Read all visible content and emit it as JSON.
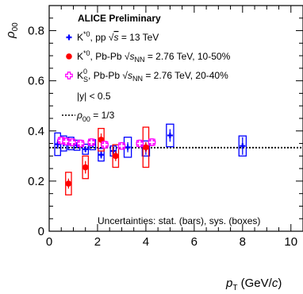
{
  "chart_data": {
    "type": "scatter",
    "title": "ALICE Preliminary",
    "xlabel_main": "p",
    "xlabel_sub": "T",
    "xlabel_unit_pre": " (GeV/",
    "xlabel_unit_c": "c",
    "xlabel_unit_post": ")",
    "ylabel_main": "ρ",
    "ylabel_sub": "00",
    "xlim": [
      0,
      10.5
    ],
    "ylim": [
      0,
      0.9
    ],
    "xticks": [
      0,
      2,
      4,
      6,
      8,
      10
    ],
    "yticks": [
      0,
      0.2,
      0.4,
      0.6,
      0.8
    ],
    "xtick_labels": [
      "0",
      "2",
      "4",
      "6",
      "8",
      "10"
    ],
    "ytick_labels": [
      "0",
      "0.2",
      "0.4",
      "0.6",
      "0.8"
    ],
    "legend_position": "top-left",
    "reference_line": {
      "y": 0.3333,
      "label": " = 1/3"
    },
    "legend_extra": "|y| < 0.5",
    "footnote": "Uncertainties: stat. (bars), sys. (boxes)",
    "series": [
      {
        "name": "K*0, pp √s = 13 TeV",
        "legend_parts": [
          "K",
          "*0",
          ", pp ",
          "√",
          "s",
          " = 13 TeV"
        ],
        "color": "#0000ff",
        "marker": "cross",
        "points": [
          {
            "x": 0.35,
            "y": 0.347,
            "stat": 0.018,
            "sys": 0.045,
            "xw": 0.12
          },
          {
            "x": 0.6,
            "y": 0.35,
            "stat": 0.012,
            "sys": 0.03,
            "xw": 0.12
          },
          {
            "x": 0.9,
            "y": 0.35,
            "stat": 0.012,
            "sys": 0.025,
            "xw": 0.12
          },
          {
            "x": 1.15,
            "y": 0.343,
            "stat": 0.012,
            "sys": 0.02,
            "xw": 0.12
          },
          {
            "x": 1.5,
            "y": 0.327,
            "stat": 0.012,
            "sys": 0.02,
            "xw": 0.12
          },
          {
            "x": 1.8,
            "y": 0.345,
            "stat": 0.012,
            "sys": 0.02,
            "xw": 0.12
          },
          {
            "x": 2.15,
            "y": 0.305,
            "stat": 0.015,
            "sys": 0.025,
            "xw": 0.12
          },
          {
            "x": 2.65,
            "y": 0.32,
            "stat": 0.015,
            "sys": 0.02,
            "xw": 0.12
          },
          {
            "x": 3.25,
            "y": 0.335,
            "stat": 0.02,
            "sys": 0.04,
            "xw": 0.15
          },
          {
            "x": 4.0,
            "y": 0.33,
            "stat": 0.025,
            "sys": 0.03,
            "xw": 0.15
          },
          {
            "x": 5.0,
            "y": 0.382,
            "stat": 0.025,
            "sys": 0.045,
            "xw": 0.15
          },
          {
            "x": 8.0,
            "y": 0.34,
            "stat": 0.035,
            "sys": 0.04,
            "xw": 0.15
          }
        ]
      },
      {
        "name": "K*0, Pb-Pb √sNN = 2.76 TeV, 10-50%",
        "legend_parts": [
          "K",
          "*0",
          ", Pb-Pb ",
          "√",
          "s",
          "NN",
          " = 2.76 TeV, 10-50%"
        ],
        "color": "#ff0000",
        "marker": "circle",
        "points": [
          {
            "x": 0.8,
            "y": 0.19,
            "stat": 0.02,
            "sys": 0.045,
            "xw": 0.12
          },
          {
            "x": 1.5,
            "y": 0.255,
            "stat": 0.025,
            "sys": 0.045,
            "xw": 0.12
          },
          {
            "x": 2.15,
            "y": 0.365,
            "stat": 0.025,
            "sys": 0.045,
            "xw": 0.12
          },
          {
            "x": 2.75,
            "y": 0.3,
            "stat": 0.02,
            "sys": 0.045,
            "xw": 0.12
          },
          {
            "x": 4.0,
            "y": 0.335,
            "stat": 0.02,
            "sys": 0.08,
            "xw": 0.12
          }
        ]
      },
      {
        "name": "K0S, Pb-Pb √sNN = 2.76 TeV, 20-40%",
        "legend_parts": [
          "K",
          "0",
          "S",
          ", Pb-Pb ",
          "√",
          "s",
          "NN",
          " = 2.76 TeV, 20-40%"
        ],
        "color": "#ff00ff",
        "marker": "open-cross",
        "points": [
          {
            "x": 0.5,
            "y": 0.362,
            "stat": 0.008,
            "sys": 0.012,
            "xw": 0.12
          },
          {
            "x": 0.7,
            "y": 0.358,
            "stat": 0.008,
            "sys": 0.012,
            "xw": 0.12
          },
          {
            "x": 0.95,
            "y": 0.355,
            "stat": 0.008,
            "sys": 0.012,
            "xw": 0.12
          },
          {
            "x": 1.3,
            "y": 0.35,
            "stat": 0.008,
            "sys": 0.012,
            "xw": 0.12
          },
          {
            "x": 1.75,
            "y": 0.355,
            "stat": 0.008,
            "sys": 0.012,
            "xw": 0.12
          },
          {
            "x": 2.3,
            "y": 0.345,
            "stat": 0.008,
            "sys": 0.012,
            "xw": 0.12
          },
          {
            "x": 3.0,
            "y": 0.34,
            "stat": 0.008,
            "sys": 0.012,
            "xw": 0.12
          },
          {
            "x": 3.75,
            "y": 0.35,
            "stat": 0.008,
            "sys": 0.012,
            "xw": 0.12
          },
          {
            "x": 4.25,
            "y": 0.355,
            "stat": 0.008,
            "sys": 0.012,
            "xw": 0.12
          }
        ]
      }
    ]
  }
}
